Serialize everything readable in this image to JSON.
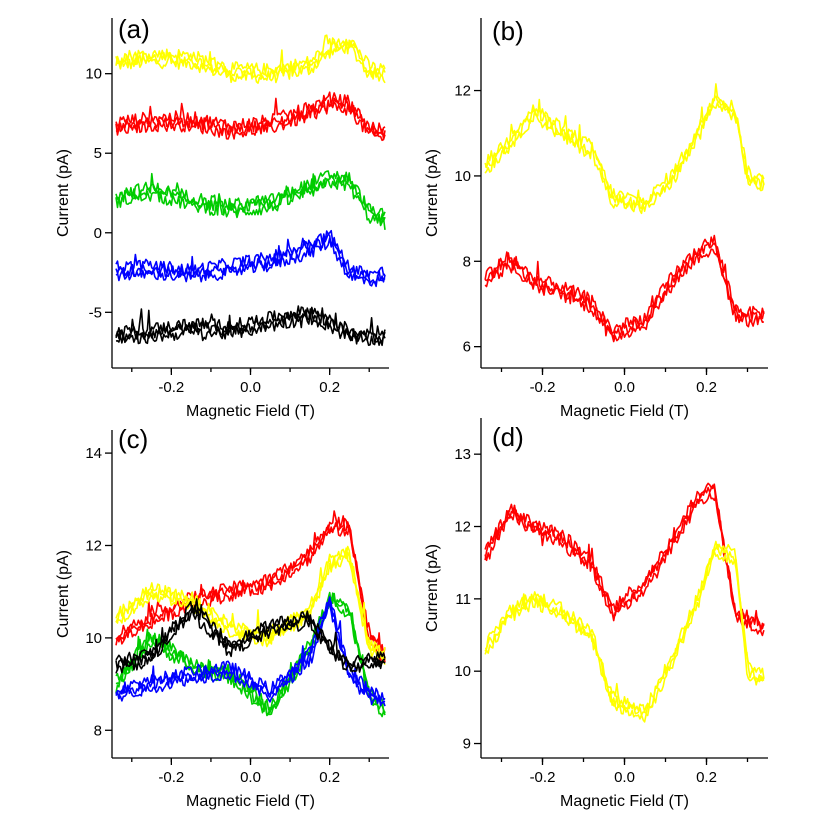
{
  "chart_data": [
    {
      "panel": "(a)",
      "type": "line",
      "xlabel": "Magnetic Field (T)",
      "ylabel": "Current (pA)",
      "xlim": [
        -0.35,
        0.35
      ],
      "ylim": [
        -8.5,
        13.5
      ],
      "xticks": [
        -0.2,
        0.0,
        0.2
      ],
      "xtick_labels": [
        "-0.2",
        "0.0",
        "0.2"
      ],
      "yticks": [
        -5,
        0,
        5,
        10
      ],
      "ytick_labels": [
        "-5",
        "0",
        "5",
        "10"
      ],
      "grid": false,
      "legend": "none",
      "series": [
        {
          "color": "#ffff00",
          "x": [
            -0.34,
            -0.25,
            -0.15,
            -0.05,
            0.05,
            0.15,
            0.2,
            0.25,
            0.3,
            0.34
          ],
          "y": [
            10.8,
            11.0,
            10.9,
            10.1,
            10.0,
            10.5,
            11.6,
            12.0,
            10.2,
            10.0
          ]
        },
        {
          "color": "#ff0000",
          "x": [
            -0.34,
            -0.25,
            -0.15,
            -0.05,
            0.05,
            0.15,
            0.2,
            0.25,
            0.3,
            0.34
          ],
          "y": [
            6.7,
            7.0,
            7.0,
            6.5,
            6.8,
            7.6,
            8.2,
            8.0,
            6.4,
            6.2
          ]
        },
        {
          "color": "#00cc00",
          "x": [
            -0.34,
            -0.25,
            -0.15,
            -0.05,
            0.05,
            0.15,
            0.2,
            0.25,
            0.3,
            0.34
          ],
          "y": [
            2.2,
            2.6,
            2.0,
            1.5,
            1.8,
            2.8,
            3.4,
            3.2,
            1.2,
            0.8
          ]
        },
        {
          "color": "#0000ff",
          "x": [
            -0.34,
            -0.25,
            -0.15,
            -0.05,
            0.05,
            0.15,
            0.2,
            0.25,
            0.3,
            0.34
          ],
          "y": [
            -2.4,
            -2.3,
            -2.6,
            -2.2,
            -1.8,
            -1.0,
            -0.3,
            -2.5,
            -2.8,
            -2.7
          ]
        },
        {
          "color": "#000000",
          "x": [
            -0.34,
            -0.25,
            -0.15,
            -0.05,
            0.05,
            0.15,
            0.2,
            0.25,
            0.3,
            0.34
          ],
          "y": [
            -6.5,
            -6.3,
            -6.0,
            -6.1,
            -5.6,
            -5.1,
            -5.6,
            -6.4,
            -6.5,
            -6.5
          ]
        }
      ]
    },
    {
      "panel": "(b)",
      "type": "line",
      "xlabel": "Magnetic Field (T)",
      "ylabel": "Current (pA)",
      "xlim": [
        -0.35,
        0.35
      ],
      "ylim": [
        5.5,
        13.7
      ],
      "xticks": [
        -0.2,
        0.0,
        0.2
      ],
      "xtick_labels": [
        "-0.2",
        "0.0",
        "0.2"
      ],
      "yticks": [
        6,
        8,
        10,
        12
      ],
      "ytick_labels": [
        "6",
        "8",
        "10",
        "12"
      ],
      "grid": false,
      "legend": "none",
      "series": [
        {
          "color": "#ffff00",
          "x": [
            -0.34,
            -0.28,
            -0.22,
            -0.15,
            -0.08,
            -0.03,
            0.05,
            0.12,
            0.18,
            0.22,
            0.27,
            0.3,
            0.34
          ],
          "y": [
            10.2,
            10.8,
            11.5,
            11.0,
            10.6,
            9.5,
            9.3,
            10.0,
            11.0,
            11.8,
            11.5,
            10.0,
            9.8
          ]
        },
        {
          "color": "#ff0000",
          "x": [
            -0.34,
            -0.28,
            -0.22,
            -0.15,
            -0.08,
            -0.03,
            0.05,
            0.12,
            0.18,
            0.22,
            0.27,
            0.3,
            0.34
          ],
          "y": [
            7.6,
            8.0,
            7.5,
            7.3,
            7.0,
            6.3,
            6.6,
            7.6,
            8.2,
            8.4,
            6.8,
            6.7,
            6.7
          ]
        }
      ]
    },
    {
      "panel": "(c)",
      "type": "line",
      "xlabel": "Magnetic Field (T)",
      "ylabel": "Current (pA)",
      "xlim": [
        -0.35,
        0.35
      ],
      "ylim": [
        7.4,
        14.5
      ],
      "xticks": [
        -0.2,
        0.0,
        0.2
      ],
      "xtick_labels": [
        "-0.2",
        "0.0",
        "0.2"
      ],
      "yticks": [
        8,
        10,
        12,
        14
      ],
      "ytick_labels": [
        "8",
        "10",
        "12",
        "14"
      ],
      "grid": false,
      "legend": "none",
      "series": [
        {
          "color": "#ff0000",
          "x": [
            -0.34,
            -0.25,
            -0.15,
            -0.05,
            0.05,
            0.15,
            0.2,
            0.25,
            0.3,
            0.34
          ],
          "y": [
            10.0,
            10.4,
            10.8,
            11.0,
            11.2,
            11.8,
            12.4,
            12.4,
            10.0,
            9.6
          ]
        },
        {
          "color": "#00cc00",
          "x": [
            -0.34,
            -0.25,
            -0.15,
            -0.05,
            0.05,
            0.15,
            0.2,
            0.25,
            0.3,
            0.34
          ],
          "y": [
            9.0,
            10.0,
            9.4,
            9.2,
            8.4,
            9.8,
            10.8,
            10.6,
            8.8,
            8.4
          ]
        },
        {
          "color": "#0000ff",
          "x": [
            -0.34,
            -0.25,
            -0.15,
            -0.05,
            0.05,
            0.15,
            0.2,
            0.25,
            0.3,
            0.34
          ],
          "y": [
            8.8,
            9.0,
            9.2,
            9.3,
            8.8,
            9.6,
            10.8,
            9.2,
            8.8,
            8.6
          ]
        },
        {
          "color": "#ffff00",
          "x": [
            -0.34,
            -0.25,
            -0.15,
            -0.05,
            0.05,
            0.15,
            0.2,
            0.25,
            0.3,
            0.34
          ],
          "y": [
            10.4,
            11.0,
            10.8,
            10.2,
            10.0,
            10.6,
            11.6,
            11.8,
            9.8,
            9.6
          ]
        },
        {
          "color": "#000000",
          "x": [
            -0.34,
            -0.25,
            -0.15,
            -0.05,
            0.05,
            0.15,
            0.2,
            0.25,
            0.3,
            0.34
          ],
          "y": [
            9.4,
            9.6,
            10.6,
            9.8,
            10.2,
            10.4,
            9.8,
            9.4,
            9.5,
            9.5
          ]
        }
      ]
    },
    {
      "panel": "(d)",
      "type": "line",
      "xlabel": "Magnetic Field (T)",
      "ylabel": "Current (pA)",
      "xlim": [
        -0.35,
        0.35
      ],
      "ylim": [
        8.8,
        13.5
      ],
      "xticks": [
        -0.2,
        0.0,
        0.2
      ],
      "xtick_labels": [
        "-0.2",
        "0.0",
        "0.2"
      ],
      "yticks": [
        9,
        10,
        11,
        12,
        13
      ],
      "ytick_labels": [
        "9",
        "10",
        "11",
        "12",
        "13"
      ],
      "grid": false,
      "legend": "none",
      "series": [
        {
          "color": "#ff0000",
          "x": [
            -0.34,
            -0.28,
            -0.22,
            -0.15,
            -0.08,
            -0.03,
            0.05,
            0.12,
            0.18,
            0.22,
            0.27,
            0.3,
            0.34
          ],
          "y": [
            11.6,
            12.2,
            12.0,
            11.8,
            11.5,
            10.8,
            11.2,
            11.8,
            12.4,
            12.5,
            10.8,
            10.7,
            10.6
          ]
        },
        {
          "color": "#ffff00",
          "x": [
            -0.34,
            -0.28,
            -0.22,
            -0.15,
            -0.08,
            -0.03,
            0.05,
            0.12,
            0.18,
            0.22,
            0.27,
            0.3,
            0.34
          ],
          "y": [
            10.3,
            10.8,
            11.0,
            10.8,
            10.5,
            9.6,
            9.4,
            10.2,
            11.0,
            11.7,
            11.6,
            10.0,
            9.9
          ]
        }
      ]
    }
  ]
}
